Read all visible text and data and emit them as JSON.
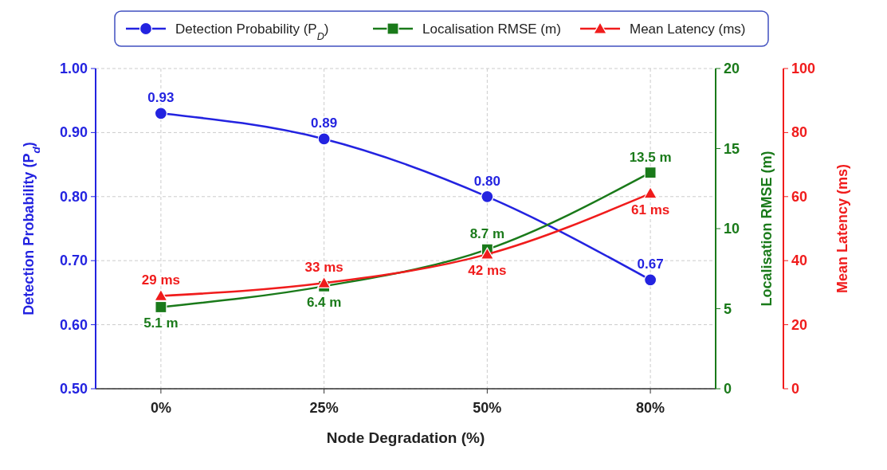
{
  "chart_data": {
    "type": "line",
    "xlabel": "Node Degradation (%)",
    "ylabel": "Detection Probability (P$_{d}$)",
    "y2label": "Localisation RMSE (m)",
    "y3label": "Mean Latency (ms)",
    "categories": [
      "0%",
      "25%",
      "50%",
      "80%"
    ],
    "ylim": [
      0.5,
      1.0
    ],
    "yticks": [
      {
        "value": 0.5,
        "label": "0.50"
      },
      {
        "value": 0.6,
        "label": "0.60"
      },
      {
        "value": 0.7,
        "label": "0.70"
      },
      {
        "value": 0.8,
        "label": "0.80"
      },
      {
        "value": 0.9,
        "label": "0.90"
      },
      {
        "value": 1.0,
        "label": "1.00"
      }
    ],
    "y2lim": [
      0,
      20
    ],
    "y2ticks": [
      0,
      5,
      10,
      15,
      20
    ],
    "y3lim": [
      0,
      100
    ],
    "y3ticks": [
      0,
      20,
      40,
      60,
      80,
      100
    ],
    "grid": true,
    "legend": "top",
    "series": [
      {
        "name": "Detection Probability (P$_{D}$)",
        "color": "#2323e0",
        "marker": "circle",
        "values": [
          0.93,
          0.89,
          0.8,
          0.67
        ],
        "value_labels": [
          "0.93",
          "0.89",
          "0.80",
          "0.67"
        ]
      },
      {
        "name": "Localisation RMSE (m)",
        "color": "#1a7a1a",
        "marker": "square",
        "axis": "y2",
        "values": [
          5.1,
          6.4,
          8.7,
          13.5
        ],
        "value_labels": [
          "5.1 m",
          "6.4 m",
          "8.7 m",
          "13.5 m"
        ]
      },
      {
        "name": "Mean Latency (ms)",
        "color": "#f01c1c",
        "marker": "triangle",
        "axis": "y3",
        "values": [
          29,
          33,
          42,
          61
        ],
        "value_labels": [
          "29 ms",
          "33 ms",
          "42 ms",
          "61 ms"
        ]
      }
    ]
  }
}
